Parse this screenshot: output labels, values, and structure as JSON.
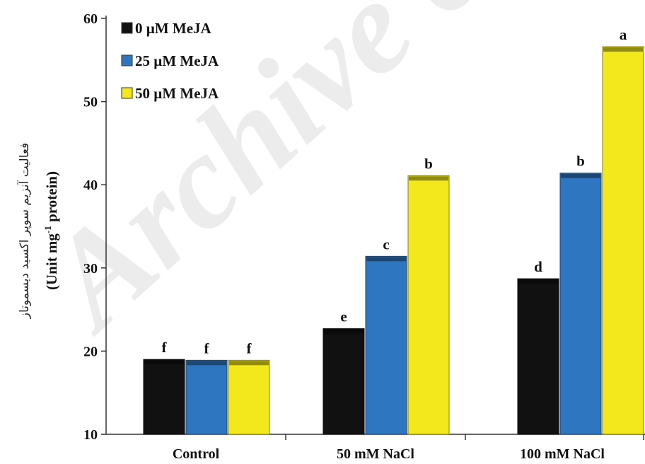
{
  "chart_data": {
    "type": "bar",
    "categories": [
      "Control",
      "50 mM NaCl",
      "100 mM NaCl"
    ],
    "series": [
      {
        "name": "0 µM MeJA",
        "color": "#111111",
        "values": [
          19.0,
          22.7,
          28.7
        ],
        "letters": [
          "f",
          "e",
          "d"
        ]
      },
      {
        "name": "25 µM MeJA",
        "color": "#2f76c0",
        "values": [
          18.9,
          31.4,
          41.4
        ],
        "letters": [
          "f",
          "c",
          "b"
        ]
      },
      {
        "name": "50 µM MeJA",
        "color": "#f3e81c",
        "values": [
          18.9,
          41.1,
          56.6
        ],
        "letters": [
          "f",
          "b",
          "a"
        ]
      }
    ],
    "y_ticks": [
      "10",
      "20",
      "30",
      "40",
      "50",
      "60"
    ],
    "ylim": [
      10,
      60
    ],
    "ylabel": "(Unit mg-1 protein)",
    "ylabel_superscript": "-1",
    "ylabel_secondary": "فعالیت آنزیم سوپر اکسید دیسموتاز",
    "legend_position": "top-left",
    "grid": false,
    "watermark": "Archive of SID"
  }
}
